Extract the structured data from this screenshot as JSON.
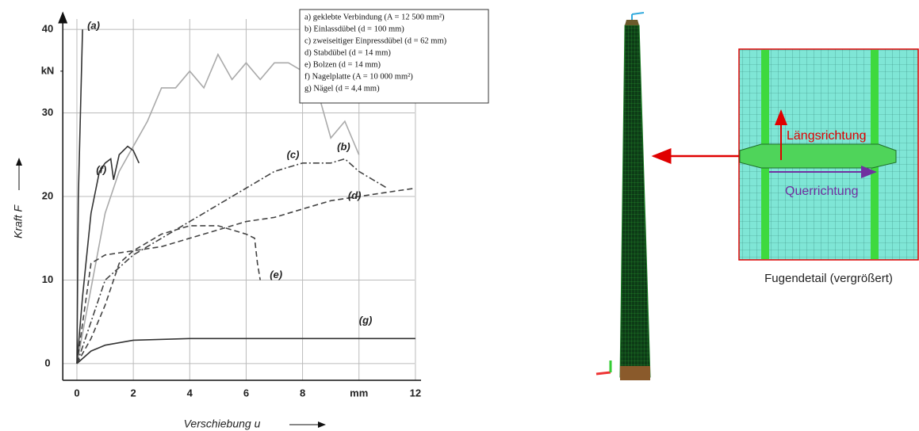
{
  "chart_data": {
    "type": "line",
    "x_label": "Verschiebung u",
    "y_label": "Kraft F",
    "xlim": [
      -0.5,
      12.2
    ],
    "ylim": [
      -2,
      42
    ],
    "xticks": [
      0,
      2,
      4,
      6,
      8,
      {
        "value": 10,
        "label": "mm"
      },
      12
    ],
    "yticks": [
      0,
      10,
      20,
      30,
      {
        "value": 35,
        "label": "kN"
      },
      40
    ],
    "grid": true,
    "series": [
      {
        "name": "a) geklebte Verbindung (A = 12 500 mm²)",
        "label": "(a)",
        "color": "#333333",
        "dash": "solid",
        "x": [
          0,
          0.05,
          0.2
        ],
        "values": [
          0,
          20,
          40
        ]
      },
      {
        "name": "b) Einlassdübel (d = 100 mm)",
        "label": "(b)",
        "color": "#aaaaaa",
        "dash": "solid",
        "x": [
          0,
          0.5,
          1,
          1.5,
          2,
          2.5,
          3,
          3.5,
          4,
          4.5,
          5,
          5.5,
          6,
          6.5,
          7,
          7.5,
          8,
          8.5,
          9,
          9.5,
          10
        ],
        "values": [
          0,
          9,
          18,
          23,
          26,
          29,
          33,
          33,
          35,
          33,
          37,
          34,
          36,
          34,
          36,
          36,
          35,
          33,
          27,
          29,
          25
        ]
      },
      {
        "name": "c) zweiseitiger Einpressdübel (d = 62 mm)",
        "label": "(c)",
        "color": "#444444",
        "dash": "dashdot",
        "x": [
          0,
          0.5,
          1,
          2,
          3,
          4,
          5,
          6,
          7,
          8,
          9,
          9.5,
          10,
          11
        ],
        "values": [
          0,
          5,
          10,
          13,
          15,
          17,
          19,
          21,
          23,
          24,
          24,
          24.5,
          23,
          21
        ]
      },
      {
        "name": "d) Stabdübel (d = 14 mm)",
        "label": "(d)",
        "color": "#444444",
        "dash": "dashed",
        "x": [
          0,
          0.5,
          1,
          2,
          3,
          4,
          5,
          6,
          7,
          8,
          9,
          10,
          11,
          12
        ],
        "values": [
          0,
          12,
          13,
          13.5,
          14,
          15,
          16,
          17,
          17.5,
          18.5,
          19.5,
          20,
          20.5,
          21
        ]
      },
      {
        "name": "e) Bolzen (d = 14 mm)",
        "label": "(e)",
        "color": "#444444",
        "dash": "dashed",
        "x": [
          0,
          0.5,
          1,
          1.5,
          2,
          3,
          4,
          5,
          5.5,
          6,
          6.3,
          6.4,
          6.5
        ],
        "values": [
          0,
          3,
          7,
          12,
          13.5,
          15.5,
          16.5,
          16.5,
          16,
          15.5,
          15,
          12,
          10
        ]
      },
      {
        "name": "f) Nagelplatte (A = 10 000 mm²)",
        "label": "(f)",
        "color": "#333333",
        "dash": "solid",
        "x": [
          0,
          0.2,
          0.5,
          0.8,
          1,
          1.2,
          1.3,
          1.5,
          1.8,
          2,
          2.2
        ],
        "values": [
          0,
          8,
          18,
          23,
          24,
          24.5,
          22,
          25,
          26,
          25.5,
          24
        ]
      },
      {
        "name": "g) Nägel (d = 4,4 mm)",
        "label": "(g)",
        "color": "#333333",
        "dash": "solid",
        "x": [
          0,
          0.5,
          1,
          2,
          4,
          6,
          8,
          10,
          12
        ],
        "values": [
          0,
          1.5,
          2.2,
          2.8,
          3,
          3,
          3,
          3,
          3
        ]
      }
    ]
  },
  "figure": {
    "longitudinal": "Längsrichtung",
    "transverse": "Querrichtung",
    "caption": "Fugendetail (vergrößert)"
  }
}
